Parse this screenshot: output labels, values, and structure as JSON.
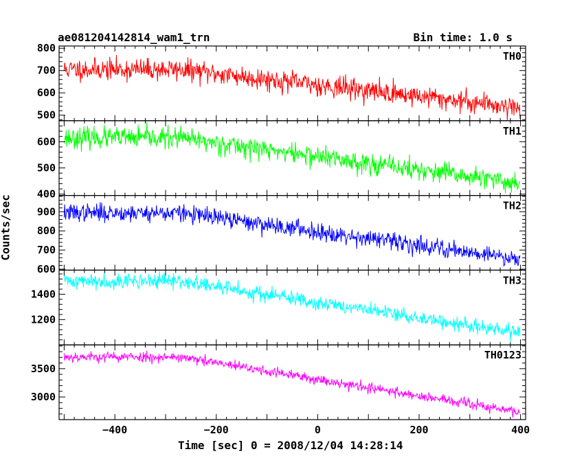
{
  "chart_data": {
    "type": "line",
    "title": "ae081204142814_wam1_trn",
    "subtitle": "Bin time: 1.0 s",
    "xlabel": "Time [sec] 0 = 2008/12/04 14:28:14",
    "ylabel": "Counts/sec",
    "xlim": [
      -510,
      410
    ],
    "x_ticks": [
      -400,
      -200,
      0,
      200,
      400
    ],
    "panels": [
      {
        "name": "TH0",
        "color": "#ff0000",
        "ylim": [
          475,
          810
        ],
        "y_ticks": [
          500,
          600,
          700,
          800
        ],
        "start": 705,
        "end": 535,
        "noise": 40,
        "seed": 11
      },
      {
        "name": "TH1",
        "color": "#00ff00",
        "ylim": [
          395,
          680
        ],
        "y_ticks": [
          400,
          500,
          600
        ],
        "start": 615,
        "end": 440,
        "noise": 33,
        "seed": 23
      },
      {
        "name": "TH2",
        "color": "#0000ff",
        "ylim": [
          595,
          985
        ],
        "y_ticks": [
          600,
          700,
          800,
          900
        ],
        "start": 895,
        "end": 655,
        "noise": 38,
        "seed": 37
      },
      {
        "name": "TH3",
        "color": "#00ffff",
        "ylim": [
          1000,
          1590
        ],
        "y_ticks": [
          1200,
          1400
        ],
        "start": 1505,
        "end": 1090,
        "noise": 50,
        "seed": 41
      },
      {
        "name": "TH0123",
        "color": "#ff00ff",
        "ylim": [
          2600,
          3920
        ],
        "y_ticks": [
          3000,
          3500
        ],
        "start": 3710,
        "end": 2730,
        "noise": 75,
        "seed": 53
      }
    ]
  }
}
